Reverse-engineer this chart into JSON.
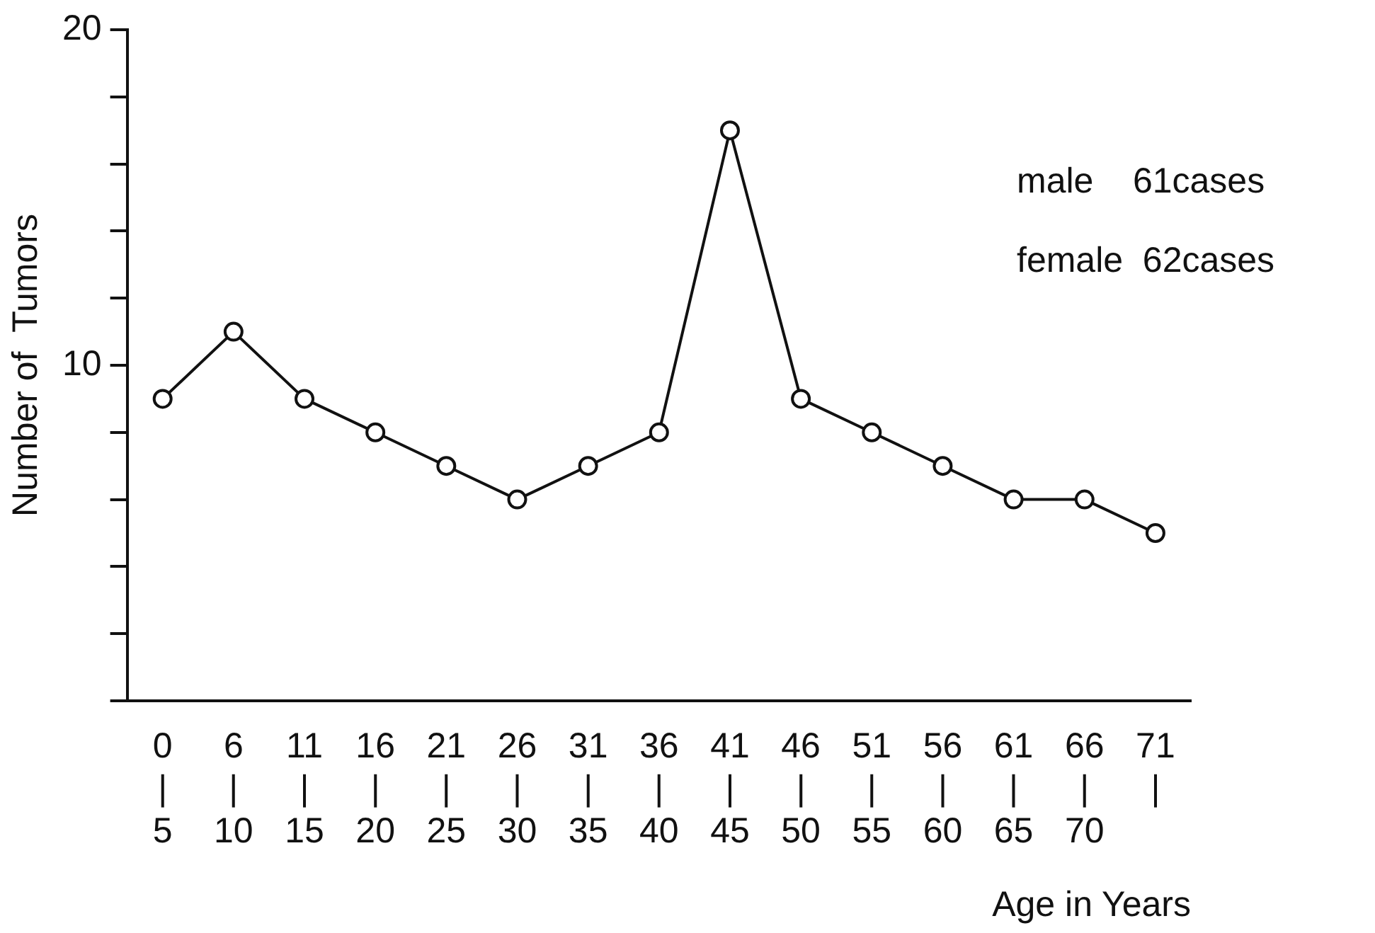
{
  "chart_data": {
    "type": "line",
    "ylabel": "Number of  Tumors",
    "xlabel": "Age in Years",
    "categories": [
      "0\n|\n5",
      "6\n|\n10",
      "11\n|\n15",
      "16\n|\n20",
      "21\n|\n25",
      "26\n|\n30",
      "31\n|\n35",
      "36\n|\n40",
      "41\n|\n45",
      "46\n|\n50",
      "51\n|\n55",
      "56\n|\n60",
      "61\n|\n65",
      "66\n|\n70",
      "71\n|"
    ],
    "values": [
      9,
      11,
      9,
      8,
      7,
      6,
      7,
      8,
      17,
      9,
      8,
      7,
      6,
      6,
      5
    ],
    "color": "#111111",
    "marker": "circle",
    "line_style": "solid",
    "grid": false,
    "legend": false,
    "ylim": [
      0,
      20
    ],
    "yticks": [
      {
        "value": 0,
        "label": null
      },
      {
        "value": 2,
        "label": null
      },
      {
        "value": 4,
        "label": null
      },
      {
        "value": 6,
        "label": null
      },
      {
        "value": 8,
        "label": null
      },
      10,
      {
        "value": 12,
        "label": null
      },
      {
        "value": 14,
        "label": null
      },
      {
        "value": 16,
        "label": null
      },
      {
        "value": 18,
        "label": null
      },
      20
    ],
    "annotations": [
      "male    61cases",
      "female  62cases"
    ]
  }
}
